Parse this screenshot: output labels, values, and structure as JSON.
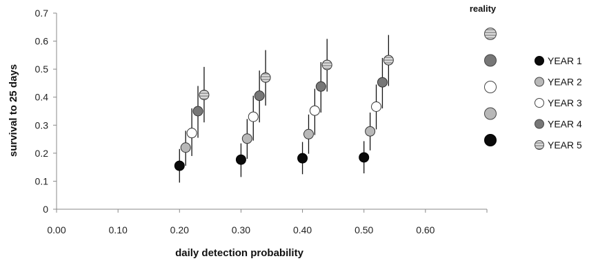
{
  "chart_data": {
    "type": "scatter",
    "title": "",
    "xlabel": "daily detection probability",
    "ylabel": "survival to 25 days",
    "xlim": [
      0,
      0.7
    ],
    "ylim": [
      0,
      0.7
    ],
    "x_ticks": [
      "0.00",
      "0.10",
      "0.20",
      "0.30",
      "0.40",
      "0.50",
      "0.60"
    ],
    "y_ticks": [
      "0",
      "0.1",
      "0.2",
      "0.3",
      "0.4",
      "0.5",
      "0.6",
      "0.7"
    ],
    "grid": false,
    "legend_position": "right",
    "error_bars": true,
    "series": [
      {
        "name": "YEAR 1",
        "style": "black",
        "x": [
          0.2,
          0.3,
          0.4,
          0.5
        ],
        "y": [
          0.155,
          0.177,
          0.182,
          0.185
        ],
        "err_low": [
          0.095,
          0.115,
          0.125,
          0.128
        ],
        "err_high": [
          0.215,
          0.235,
          0.24,
          0.243
        ]
      },
      {
        "name": "YEAR 2",
        "style": "light-gray",
        "x": [
          0.21,
          0.31,
          0.41,
          0.51
        ],
        "y": [
          0.22,
          0.252,
          0.268,
          0.278
        ],
        "err_low": [
          0.155,
          0.18,
          0.198,
          0.21
        ],
        "err_high": [
          0.28,
          0.322,
          0.338,
          0.345
        ]
      },
      {
        "name": "YEAR 3",
        "style": "white",
        "x": [
          0.22,
          0.32,
          0.42,
          0.52
        ],
        "y": [
          0.272,
          0.33,
          0.352,
          0.366
        ],
        "err_low": [
          0.19,
          0.245,
          0.265,
          0.285
        ],
        "err_high": [
          0.36,
          0.405,
          0.43,
          0.445
        ]
      },
      {
        "name": "YEAR 4",
        "style": "dark-gray",
        "x": [
          0.23,
          0.33,
          0.43,
          0.53
        ],
        "y": [
          0.35,
          0.405,
          0.438,
          0.453
        ],
        "err_low": [
          0.255,
          0.31,
          0.345,
          0.36
        ],
        "err_high": [
          0.44,
          0.495,
          0.525,
          0.54
        ]
      },
      {
        "name": "YEAR 5",
        "style": "striped",
        "x": [
          0.24,
          0.34,
          0.44,
          0.54
        ],
        "y": [
          0.408,
          0.47,
          0.515,
          0.532
        ],
        "err_low": [
          0.31,
          0.37,
          0.42,
          0.44
        ],
        "err_high": [
          0.508,
          0.568,
          0.608,
          0.622
        ]
      }
    ],
    "reality": {
      "label": "reality",
      "markers": [
        "striped",
        "dark-gray",
        "white",
        "light-gray",
        "black"
      ]
    }
  },
  "colors": {
    "black": "#0a0a0a",
    "light-gray": "#b8b8b8",
    "white": "#ffffff",
    "dark-gray": "#777777",
    "striped-fill": "#d9d9d9",
    "stripe": "#8a8a8a",
    "axis": "#888888"
  }
}
